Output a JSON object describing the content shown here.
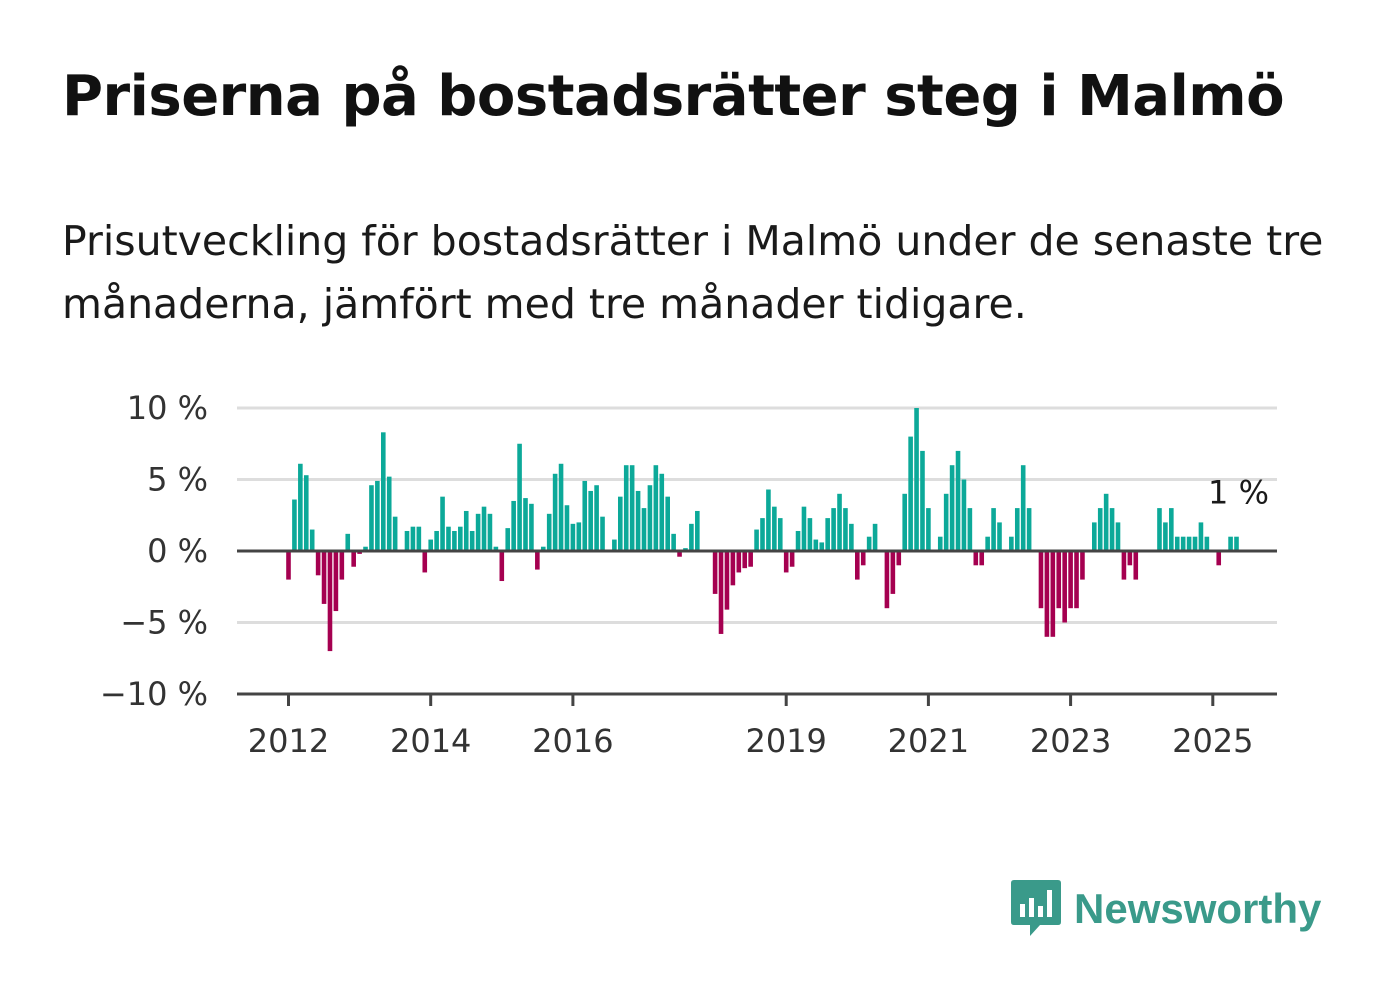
{
  "title": "Priserna på bostadsrätter steg i Malmö",
  "subtitle": "Prisutveckling för bostadsrätter i Malmö under de senaste tre månaderna, jämfört med tre månader tidigare.",
  "brand": {
    "name": "Newsworthy",
    "icon": "newsworthy-logo-icon",
    "color": "#3a9a8a"
  },
  "colors": {
    "positive": "#0ca999",
    "negative": "#a50050",
    "grid": "#dddddd",
    "zero": "#444444"
  },
  "chart_data": {
    "type": "bar",
    "x_start": "2012-01",
    "x_unit": "month",
    "y_ticks": [
      10,
      5,
      0,
      -5,
      -10
    ],
    "y_tick_labels": [
      "10 %",
      "5 %",
      "0 %",
      "−5 %",
      "−10 %"
    ],
    "x_ticks": [
      "2012",
      "2014",
      "2016",
      "2019",
      "2021",
      "2023",
      "2025"
    ],
    "ylim": [
      -10,
      10
    ],
    "grid": true,
    "end_label": "1 %",
    "values": [
      -2.0,
      3.6,
      6.1,
      5.3,
      1.5,
      -1.7,
      -3.7,
      -7.0,
      -4.2,
      -2.0,
      1.2,
      -1.1,
      -0.2,
      0.3,
      4.6,
      4.9,
      8.3,
      5.2,
      2.4,
      0.0,
      1.4,
      1.7,
      1.7,
      -1.5,
      0.8,
      1.4,
      3.8,
      1.7,
      1.4,
      1.7,
      2.8,
      1.4,
      2.6,
      3.1,
      2.6,
      0.3,
      -2.1,
      1.6,
      3.5,
      7.5,
      3.7,
      3.3,
      -1.3,
      0.3,
      2.6,
      5.4,
      6.1,
      3.2,
      1.9,
      2.0,
      4.9,
      4.2,
      4.6,
      2.4,
      0.0,
      0.8,
      3.8,
      6.0,
      6.0,
      4.2,
      3.0,
      4.6,
      6.0,
      5.4,
      3.8,
      1.2,
      -0.4,
      0.2,
      1.9,
      2.8,
      0.0,
      0.0,
      -3.0,
      -5.8,
      -4.1,
      -2.4,
      -1.5,
      -1.2,
      -1.1,
      1.5,
      2.3,
      4.3,
      3.1,
      2.3,
      -1.5,
      -1.1,
      1.4,
      3.1,
      2.3,
      0.8,
      0.6,
      2.3,
      3.0,
      4.0,
      3.0,
      1.9,
      -2.0,
      -1.0,
      1.0,
      1.9,
      0.0,
      -4.0,
      -3.0,
      -1.0,
      4.0,
      8.0,
      10.0,
      7.0,
      3.0,
      0.0,
      1.0,
      4.0,
      6.0,
      7.0,
      5.0,
      3.0,
      -1.0,
      -1.0,
      1.0,
      3.0,
      2.0,
      0.0,
      1.0,
      3.0,
      6.0,
      3.0,
      0.0,
      -4.0,
      -6.0,
      -6.0,
      -4.0,
      -5.0,
      -4.0,
      -4.0,
      -2.0,
      0.0,
      2.0,
      3.0,
      4.0,
      3.0,
      2.0,
      -2.0,
      -1.0,
      -2.0,
      0.0,
      0.0,
      0.0,
      3.0,
      2.0,
      3.0,
      1.0,
      1.0,
      1.0,
      1.0,
      2.0,
      1.0,
      0.0,
      -1.0,
      0.0,
      1.0,
      1.0
    ]
  }
}
